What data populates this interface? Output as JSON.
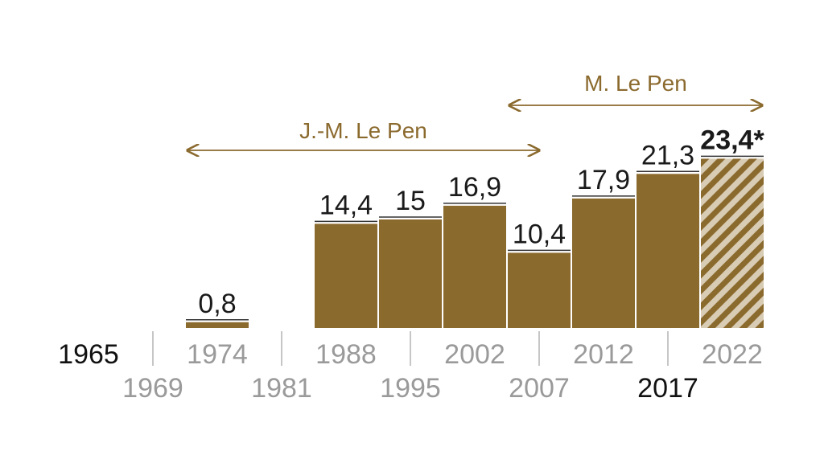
{
  "colors": {
    "bar": "#8B6A2E",
    "hatch_light": "#d9ccb4",
    "arrow": "#8B6A2E",
    "gray": "#9a9a9a",
    "dark": "#111111",
    "baseline_line": "#333333"
  },
  "chart_data": {
    "type": "bar",
    "title": "",
    "xlabel": "",
    "ylabel": "",
    "ylim": [
      0,
      25
    ],
    "grid": false,
    "categories": [
      "1965",
      "1969",
      "1974",
      "1981",
      "1988",
      "1995",
      "2002",
      "2007",
      "2012",
      "2017",
      "2022"
    ],
    "values": [
      null,
      null,
      0.8,
      null,
      14.4,
      15,
      16.9,
      10.4,
      17.9,
      21.3,
      23.4
    ],
    "value_labels": [
      "",
      "",
      "0,8",
      "",
      "14,4",
      "15",
      "16,9",
      "10,4",
      "17,9",
      "21,3",
      "23,4*"
    ],
    "highlight_label": "23,4*",
    "hatched_category": "2022",
    "highlighted_years": [
      "1965",
      "2017"
    ],
    "periods": [
      {
        "label": "J.-M. Le Pen",
        "from": "1974",
        "to": "2007"
      },
      {
        "label": "M. Le Pen",
        "from": "2007",
        "to": "2022"
      }
    ]
  }
}
